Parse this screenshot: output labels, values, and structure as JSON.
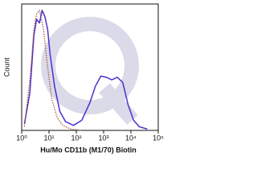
{
  "chart_data": {
    "type": "line",
    "x_label": "Hu/Mo CD11b (M1/70) Biotin",
    "y_label": "Count",
    "xscale": "log",
    "xlim": [
      1,
      100000
    ],
    "ylim": [
      0,
      100
    ],
    "xticks": [
      {
        "value": 1,
        "label": "10⁰"
      },
      {
        "value": 10,
        "label": "10¹"
      },
      {
        "value": 100,
        "label": "10²"
      },
      {
        "value": 1000,
        "label": "10³"
      },
      {
        "value": 10000,
        "label": "10⁴"
      },
      {
        "value": 100000,
        "label": "10⁵"
      }
    ],
    "series": [
      {
        "color": "#4b2fd0",
        "dash": "solid",
        "x": [
          1.26,
          2,
          2.8,
          3.5,
          4.5,
          5.6,
          7.1,
          8.9,
          11,
          16,
          25,
          40,
          79,
          158,
          316,
          501,
          794,
          1259,
          1995,
          3162,
          5012,
          7943,
          12589,
          19953,
          39811
        ],
        "values": [
          5,
          30,
          75,
          88,
          85,
          95,
          90,
          80,
          60,
          35,
          15,
          7,
          4,
          8,
          22,
          35,
          43,
          42,
          40,
          42,
          38,
          20,
          8,
          3,
          1
        ]
      },
      {
        "color": "#a0522d",
        "dash": "dotted",
        "x": [
          1.26,
          2,
          2.8,
          3.5,
          4.5,
          6.3,
          8.9,
          12.6,
          20,
          32,
          63,
          158
        ],
        "values": [
          3,
          40,
          80,
          92,
          95,
          80,
          50,
          25,
          10,
          4,
          1,
          0
        ]
      }
    ]
  }
}
